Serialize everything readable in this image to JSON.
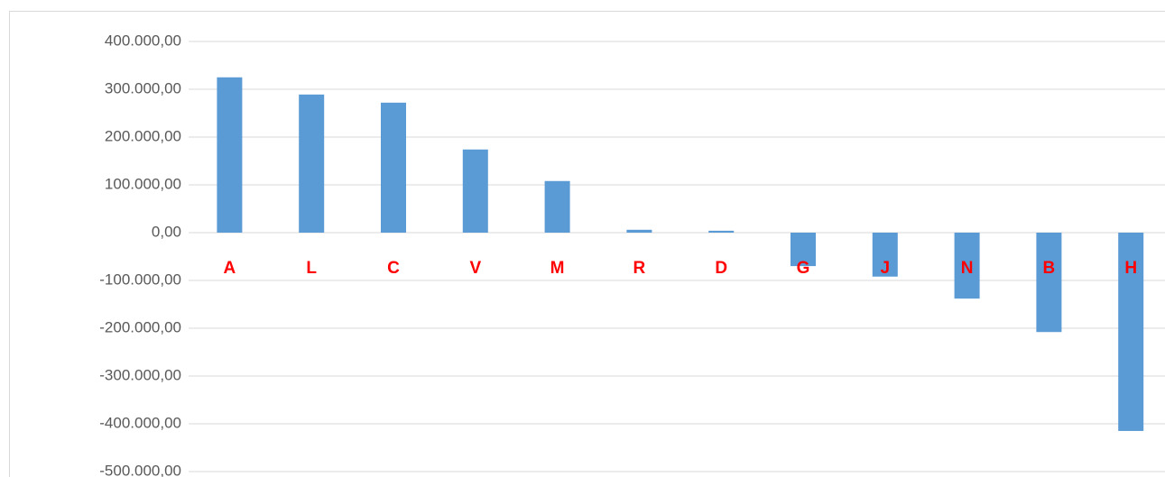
{
  "chart_data": {
    "type": "bar",
    "categories": [
      "A",
      "L",
      "C",
      "V",
      "M",
      "R",
      "D",
      "G",
      "J",
      "N",
      "B",
      "H"
    ],
    "values": [
      325000,
      289000,
      272000,
      174000,
      108000,
      6000,
      4000,
      -70000,
      -92000,
      -138000,
      -208000,
      -415000
    ],
    "color": "#5b9bd5",
    "label_color": "#ff0000",
    "ylim": [
      -500000,
      400000
    ],
    "yticks": [
      {
        "value": 400000,
        "label": "400.000,00"
      },
      {
        "value": 300000,
        "label": "300.000,00"
      },
      {
        "value": 200000,
        "label": "200.000,00"
      },
      {
        "value": 100000,
        "label": "100.000,00"
      },
      {
        "value": 0,
        "label": "0,00"
      },
      {
        "value": -100000,
        "label": "-100.000,00"
      },
      {
        "value": -200000,
        "label": "-200.000,00"
      },
      {
        "value": -300000,
        "label": "-300.000,00"
      },
      {
        "value": -400000,
        "label": "-400.000,00"
      },
      {
        "value": -500000,
        "label": "-500.000,00"
      }
    ],
    "grid": true
  }
}
